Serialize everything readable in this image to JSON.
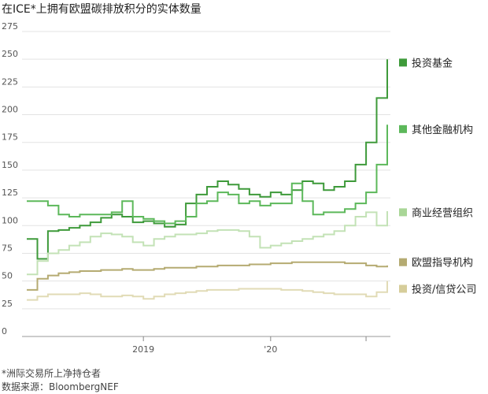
{
  "chart_data": {
    "type": "line",
    "title": "在ICE*上拥有欧盟碳排放积分的实体数量",
    "ylim": [
      0,
      275
    ],
    "yticks": [
      0,
      25,
      50,
      75,
      100,
      125,
      150,
      175,
      200,
      225,
      250,
      275
    ],
    "x_range": [
      "2018-02",
      "2020-12"
    ],
    "xticks": [
      {
        "label": "2019",
        "x": "2019-01"
      },
      {
        "label": "'20",
        "x": "2020-01"
      },
      {
        "label": "",
        "x": "2020-10"
      }
    ],
    "grid": true,
    "legend_position": "right",
    "series": [
      {
        "name": "投资基金",
        "color": "#3e9a3a",
        "width": 2.0,
        "points": [
          [
            "2018-02",
            88
          ],
          [
            "2018-03",
            70
          ],
          [
            "2018-04",
            95
          ],
          [
            "2018-05",
            96
          ],
          [
            "2018-06",
            98
          ],
          [
            "2018-07",
            100
          ],
          [
            "2018-08",
            103
          ],
          [
            "2018-09",
            107
          ],
          [
            "2018-10",
            110
          ],
          [
            "2018-11",
            108
          ],
          [
            "2018-12",
            103
          ],
          [
            "2019-01",
            104
          ],
          [
            "2019-02",
            102
          ],
          [
            "2019-03",
            99
          ],
          [
            "2019-04",
            101
          ],
          [
            "2019-05",
            120
          ],
          [
            "2019-06",
            128
          ],
          [
            "2019-07",
            135
          ],
          [
            "2019-08",
            140
          ],
          [
            "2019-09",
            137
          ],
          [
            "2019-10",
            133
          ],
          [
            "2019-11",
            128
          ],
          [
            "2019-12",
            126
          ],
          [
            "2020-01",
            130
          ],
          [
            "2020-02",
            128
          ],
          [
            "2020-03",
            132
          ],
          [
            "2020-04",
            140
          ],
          [
            "2020-05",
            138
          ],
          [
            "2020-06",
            132
          ],
          [
            "2020-07",
            135
          ],
          [
            "2020-08",
            140
          ],
          [
            "2020-09",
            155
          ],
          [
            "2020-10",
            175
          ],
          [
            "2020-11",
            215
          ],
          [
            "2020-12",
            250
          ]
        ]
      },
      {
        "name": "其他金融机构",
        "color": "#5cb85a",
        "width": 2.0,
        "points": [
          [
            "2018-02",
            122
          ],
          [
            "2018-03",
            122
          ],
          [
            "2018-04",
            118
          ],
          [
            "2018-05",
            110
          ],
          [
            "2018-06",
            108
          ],
          [
            "2018-07",
            110
          ],
          [
            "2018-08",
            110
          ],
          [
            "2018-09",
            110
          ],
          [
            "2018-10",
            112
          ],
          [
            "2018-11",
            122
          ],
          [
            "2018-12",
            108
          ],
          [
            "2019-01",
            106
          ],
          [
            "2019-02",
            104
          ],
          [
            "2019-03",
            102
          ],
          [
            "2019-04",
            104
          ],
          [
            "2019-05",
            108
          ],
          [
            "2019-06",
            120
          ],
          [
            "2019-07",
            122
          ],
          [
            "2019-08",
            130
          ],
          [
            "2019-09",
            128
          ],
          [
            "2019-10",
            120
          ],
          [
            "2019-11",
            122
          ],
          [
            "2019-12",
            118
          ],
          [
            "2020-01",
            120
          ],
          [
            "2020-02",
            120
          ],
          [
            "2020-03",
            138
          ],
          [
            "2020-04",
            122
          ],
          [
            "2020-05",
            110
          ],
          [
            "2020-06",
            112
          ],
          [
            "2020-07",
            112
          ],
          [
            "2020-08",
            115
          ],
          [
            "2020-09",
            120
          ],
          [
            "2020-10",
            130
          ],
          [
            "2020-11",
            155
          ],
          [
            "2020-12",
            191
          ]
        ]
      },
      {
        "name": "商业经营组织",
        "color": "#c3e2b6",
        "width": 2.0,
        "points": [
          [
            "2018-02",
            56
          ],
          [
            "2018-03",
            68
          ],
          [
            "2018-04",
            75
          ],
          [
            "2018-05",
            78
          ],
          [
            "2018-06",
            82
          ],
          [
            "2018-07",
            85
          ],
          [
            "2018-08",
            90
          ],
          [
            "2018-09",
            93
          ],
          [
            "2018-10",
            92
          ],
          [
            "2018-11",
            90
          ],
          [
            "2018-12",
            85
          ],
          [
            "2019-01",
            82
          ],
          [
            "2019-02",
            88
          ],
          [
            "2019-03",
            90
          ],
          [
            "2019-04",
            92
          ],
          [
            "2019-05",
            92
          ],
          [
            "2019-06",
            93
          ],
          [
            "2019-07",
            95
          ],
          [
            "2019-08",
            96
          ],
          [
            "2019-09",
            96
          ],
          [
            "2019-10",
            95
          ],
          [
            "2019-11",
            90
          ],
          [
            "2019-12",
            80
          ],
          [
            "2020-01",
            82
          ],
          [
            "2020-02",
            84
          ],
          [
            "2020-03",
            86
          ],
          [
            "2020-04",
            88
          ],
          [
            "2020-05",
            90
          ],
          [
            "2020-06",
            92
          ],
          [
            "2020-07",
            95
          ],
          [
            "2020-08",
            100
          ],
          [
            "2020-09",
            108
          ],
          [
            "2020-10",
            112
          ],
          [
            "2020-11",
            100
          ],
          [
            "2020-12",
            113
          ]
        ]
      },
      {
        "name": "欧盟指导机构",
        "color": "#b5ab72",
        "width": 2.0,
        "points": [
          [
            "2018-02",
            42
          ],
          [
            "2018-03",
            52
          ],
          [
            "2018-04",
            55
          ],
          [
            "2018-05",
            57
          ],
          [
            "2018-06",
            58
          ],
          [
            "2018-07",
            59
          ],
          [
            "2018-08",
            59
          ],
          [
            "2018-09",
            60
          ],
          [
            "2018-10",
            60
          ],
          [
            "2018-11",
            61
          ],
          [
            "2018-12",
            60
          ],
          [
            "2019-01",
            60
          ],
          [
            "2019-02",
            61
          ],
          [
            "2019-03",
            62
          ],
          [
            "2019-04",
            62
          ],
          [
            "2019-05",
            62
          ],
          [
            "2019-06",
            63
          ],
          [
            "2019-07",
            63
          ],
          [
            "2019-08",
            64
          ],
          [
            "2019-09",
            64
          ],
          [
            "2019-10",
            64
          ],
          [
            "2019-11",
            65
          ],
          [
            "2019-12",
            65
          ],
          [
            "2020-01",
            66
          ],
          [
            "2020-02",
            66
          ],
          [
            "2020-03",
            67
          ],
          [
            "2020-04",
            67
          ],
          [
            "2020-05",
            67
          ],
          [
            "2020-06",
            67
          ],
          [
            "2020-07",
            67
          ],
          [
            "2020-08",
            66
          ],
          [
            "2020-09",
            66
          ],
          [
            "2020-10",
            64
          ],
          [
            "2020-11",
            63
          ],
          [
            "2020-12",
            64
          ]
        ]
      },
      {
        "name": "投资/信贷公司",
        "color": "#e1dbb6",
        "width": 2.0,
        "points": [
          [
            "2018-02",
            33
          ],
          [
            "2018-03",
            36
          ],
          [
            "2018-04",
            38
          ],
          [
            "2018-05",
            38
          ],
          [
            "2018-06",
            38
          ],
          [
            "2018-07",
            39
          ],
          [
            "2018-08",
            38
          ],
          [
            "2018-09",
            36
          ],
          [
            "2018-10",
            36
          ],
          [
            "2018-11",
            37
          ],
          [
            "2018-12",
            36
          ],
          [
            "2019-01",
            34
          ],
          [
            "2019-02",
            36
          ],
          [
            "2019-03",
            38
          ],
          [
            "2019-04",
            39
          ],
          [
            "2019-05",
            40
          ],
          [
            "2019-06",
            41
          ],
          [
            "2019-07",
            42
          ],
          [
            "2019-08",
            42
          ],
          [
            "2019-09",
            42
          ],
          [
            "2019-10",
            43
          ],
          [
            "2019-11",
            43
          ],
          [
            "2019-12",
            43
          ],
          [
            "2020-01",
            43
          ],
          [
            "2020-02",
            42
          ],
          [
            "2020-03",
            42
          ],
          [
            "2020-04",
            41
          ],
          [
            "2020-05",
            40
          ],
          [
            "2020-06",
            39
          ],
          [
            "2020-07",
            38
          ],
          [
            "2020-08",
            38
          ],
          [
            "2020-09",
            38
          ],
          [
            "2020-10",
            36
          ],
          [
            "2020-11",
            40
          ],
          [
            "2020-12",
            50
          ]
        ]
      }
    ],
    "legend_labels": [
      {
        "name": "投资基金",
        "color": "#3e9a3a",
        "y": 247
      },
      {
        "name": "其他金融机构",
        "color": "#5cb85a",
        "y": 187
      },
      {
        "name": "商业经营组织",
        "color": "#a9d697",
        "y": 112
      },
      {
        "name": "欧盟指导机构",
        "color": "#b5ab72",
        "y": 67
      },
      {
        "name": "投资/信贷公司",
        "color": "#d6cd9a",
        "y": 43
      }
    ],
    "footnote": "*洲际交易所上净持仓者",
    "source": "数据来源：BloombergNEF"
  }
}
